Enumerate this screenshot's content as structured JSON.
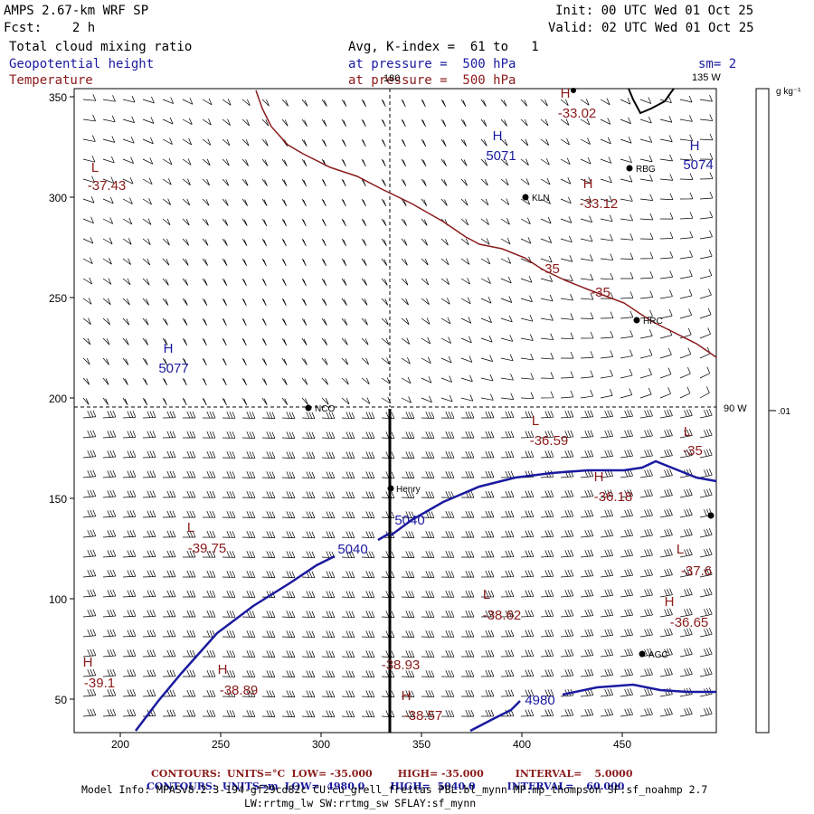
{
  "header": {
    "model": "AMPS 2.67-km WRF SP",
    "init": "Init: 00 UTC Wed 01 Oct 25",
    "fcst": "Fcst:    2 h",
    "valid": "Valid: 02 UTC Wed 01 Oct 25",
    "field1": "Total cloud mixing ratio",
    "field2": "Geopotential height",
    "field3": "Temperature",
    "avg": "Avg, K-index =  61 to   1",
    "pres1": "at pressure =  500 hPa",
    "pres2": "at pressure =  500 hPa",
    "sm": "sm= 2"
  },
  "map": {
    "lon_labels": [
      "135 W",
      "90 W",
      "180"
    ],
    "x_ticks": [
      "200",
      "250",
      "300",
      "350",
      "400",
      "450"
    ],
    "y_ticks": [
      "350",
      "300",
      "250",
      "200",
      "150",
      "100",
      "50"
    ],
    "stations": [
      {
        "name": "RBG"
      },
      {
        "name": "KLN"
      },
      {
        "name": "HRC"
      },
      {
        "name": "NCO"
      },
      {
        "name": "Henry"
      },
      {
        "name": "AGC"
      },
      {
        "name": ""
      }
    ],
    "temp_labels": [
      {
        "sym": "L",
        "val": "-37.43"
      },
      {
        "sym": "H",
        "val": "-33.02"
      },
      {
        "sym": "H",
        "val": "-33.12"
      },
      {
        "sym": "",
        "val": "-35"
      },
      {
        "sym": "",
        "val": "-35"
      },
      {
        "sym": "L",
        "val": "-36.59"
      },
      {
        "sym": "L",
        "val": "-35"
      },
      {
        "sym": "H",
        "val": "-36.18"
      },
      {
        "sym": "L",
        "val": "-39.75"
      },
      {
        "sym": "L",
        "val": "-37.6"
      },
      {
        "sym": "L",
        "val": "-38.62"
      },
      {
        "sym": "H",
        "val": "-36.65"
      },
      {
        "sym": "H",
        "val": "-39.1"
      },
      {
        "sym": "H",
        "val": "-38.89"
      },
      {
        "sym": "",
        "val": "-38.93"
      },
      {
        "sym": "H",
        "val": "-38.57"
      }
    ],
    "height_labels": [
      {
        "sym": "H",
        "val": "5071"
      },
      {
        "sym": "H",
        "val": "5074"
      },
      {
        "sym": "H",
        "val": "5077"
      },
      {
        "sym": "",
        "val": "5040"
      },
      {
        "sym": "",
        "val": "5040"
      },
      {
        "sym": "",
        "val": "4980"
      }
    ]
  },
  "colorbar": {
    "unit": "g kg⁻¹",
    "value": ".01"
  },
  "footer": {
    "red": {
      "contours": "CONTOURS:",
      "units": "UNITS=°C",
      "low": "LOW= -35.000",
      "high": "HIGH= -35.000",
      "interval": "INTERVAL=",
      "interval_val": "5.0000"
    },
    "blue": {
      "contours": "CONTOURS:",
      "units": "UNITS=m",
      "low": "LOW=  4980.0",
      "high": "HIGH=  5040.0",
      "interval": "INTERVAL=",
      "interval_val": "60.000"
    },
    "model_info": "Model Info: MPASv8.2.3-194-gf29cd82c CU:cu_grell_freitas PBL:bl_mynn MP:mp_thompson SF:sf_noahmp 2.7",
    "model_info2": "LW:rrtmg_lw SW:rrtmg_sw SFLAY:sf_mynn"
  },
  "colors": {
    "temperature": "#8b1a1a",
    "height": "#1a1aa0",
    "barbs": "#000000"
  }
}
